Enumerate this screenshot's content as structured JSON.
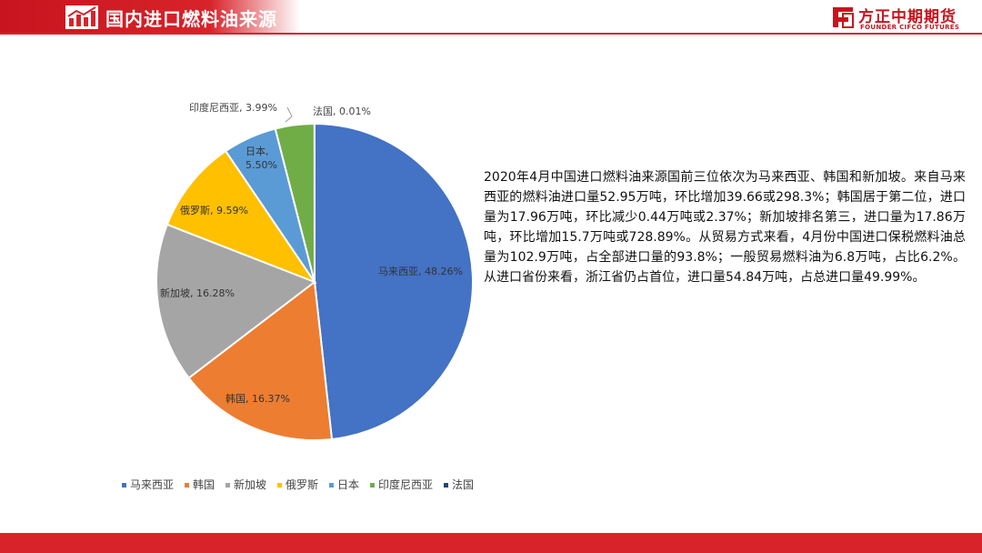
{
  "header": {
    "title": "国内进口燃料油来源",
    "logo_cn": "方正中期期货",
    "logo_en": "FOUNDER CIFCO FUTURES",
    "brand_color": "#d8232a"
  },
  "chart_data": {
    "type": "pie",
    "title": "",
    "categories": [
      "马来西亚",
      "韩国",
      "新加坡",
      "俄罗斯",
      "日本",
      "印度尼西亚",
      "法国"
    ],
    "values": [
      48.26,
      16.37,
      16.28,
      9.59,
      5.5,
      3.99,
      0.01
    ],
    "data_labels": [
      [
        "马来西亚, 48.26%"
      ],
      [
        "韩国, 16.37%"
      ],
      [
        "新加坡, 16.28%"
      ],
      [
        "俄罗斯, 9.59%"
      ],
      [
        "日本,",
        "5.50%"
      ],
      [
        "印度尼西亚, 3.99%"
      ],
      [
        "法国, 0.01%"
      ]
    ],
    "colors": [
      "#4472c4",
      "#ed7d31",
      "#a5a5a5",
      "#ffc000",
      "#5b9bd5",
      "#70ad47",
      "#264478"
    ],
    "legend_position": "bottom",
    "start_angle": "12 o'clock",
    "direction": "clockwise"
  },
  "description": "2020年4月中国进口燃料油来源国前三位依次为马来西亚、韩国和新加坡。来自马来西亚的燃料油进口量52.95万吨，环比增加39.66或298.3%；韩国居于第二位，进口量为17.96万吨，环比减少0.44万吨或2.37%；新加坡排名第三，进口量为17.86万吨，环比增加15.7万吨或728.89%。从贸易方式来看，4月份中国进口保税燃料油总量为102.9万吨，占全部进口量的93.8%；一般贸易燃料油为6.8万吨，占比6.2%。从进口省份来看，浙江省仍占首位，进口量54.84万吨，占总进口量49.99%。"
}
